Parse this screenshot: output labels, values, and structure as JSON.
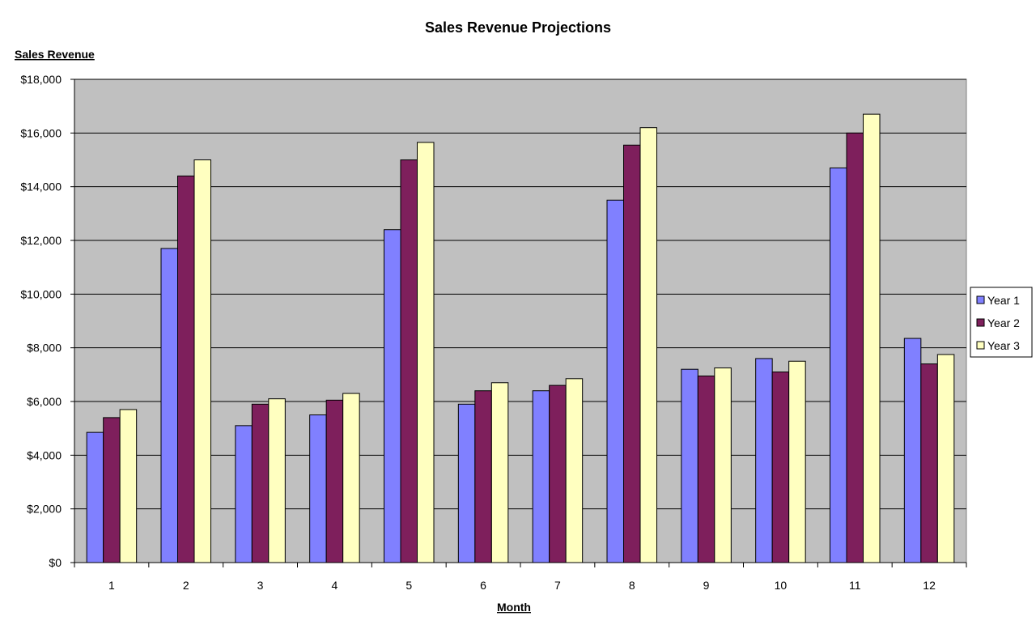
{
  "chart_data": {
    "type": "bar",
    "title": "Sales Revenue Projections",
    "ylabel": "Sales Revenue",
    "xlabel": "Month",
    "categories": [
      "1",
      "2",
      "3",
      "4",
      "5",
      "6",
      "7",
      "8",
      "9",
      "10",
      "11",
      "12"
    ],
    "series": [
      {
        "name": "Year 1",
        "color": "#8080ff",
        "values": [
          4850,
          11700,
          5100,
          5500,
          12400,
          5900,
          6400,
          13500,
          7200,
          7600,
          14700,
          8350
        ]
      },
      {
        "name": "Year 2",
        "color": "#7e1f5c",
        "values": [
          5400,
          14400,
          5900,
          6050,
          15000,
          6400,
          6600,
          15550,
          6950,
          7100,
          16000,
          7400
        ]
      },
      {
        "name": "Year 3",
        "color": "#ffffc0",
        "values": [
          5700,
          15000,
          6100,
          6300,
          15650,
          6700,
          6850,
          16200,
          7250,
          7500,
          16700,
          7750
        ]
      }
    ],
    "ylim": [
      0,
      18000
    ],
    "yticks": [
      0,
      2000,
      4000,
      6000,
      8000,
      10000,
      12000,
      14000,
      16000,
      18000
    ],
    "ytick_labels": [
      "$0",
      "$2,000",
      "$4,000",
      "$6,000",
      "$8,000",
      "$10,000",
      "$12,000",
      "$14,000",
      "$16,000",
      "$18,000"
    ],
    "grid": true,
    "plot_background": "#c0c0c0",
    "legend_position": "right"
  }
}
